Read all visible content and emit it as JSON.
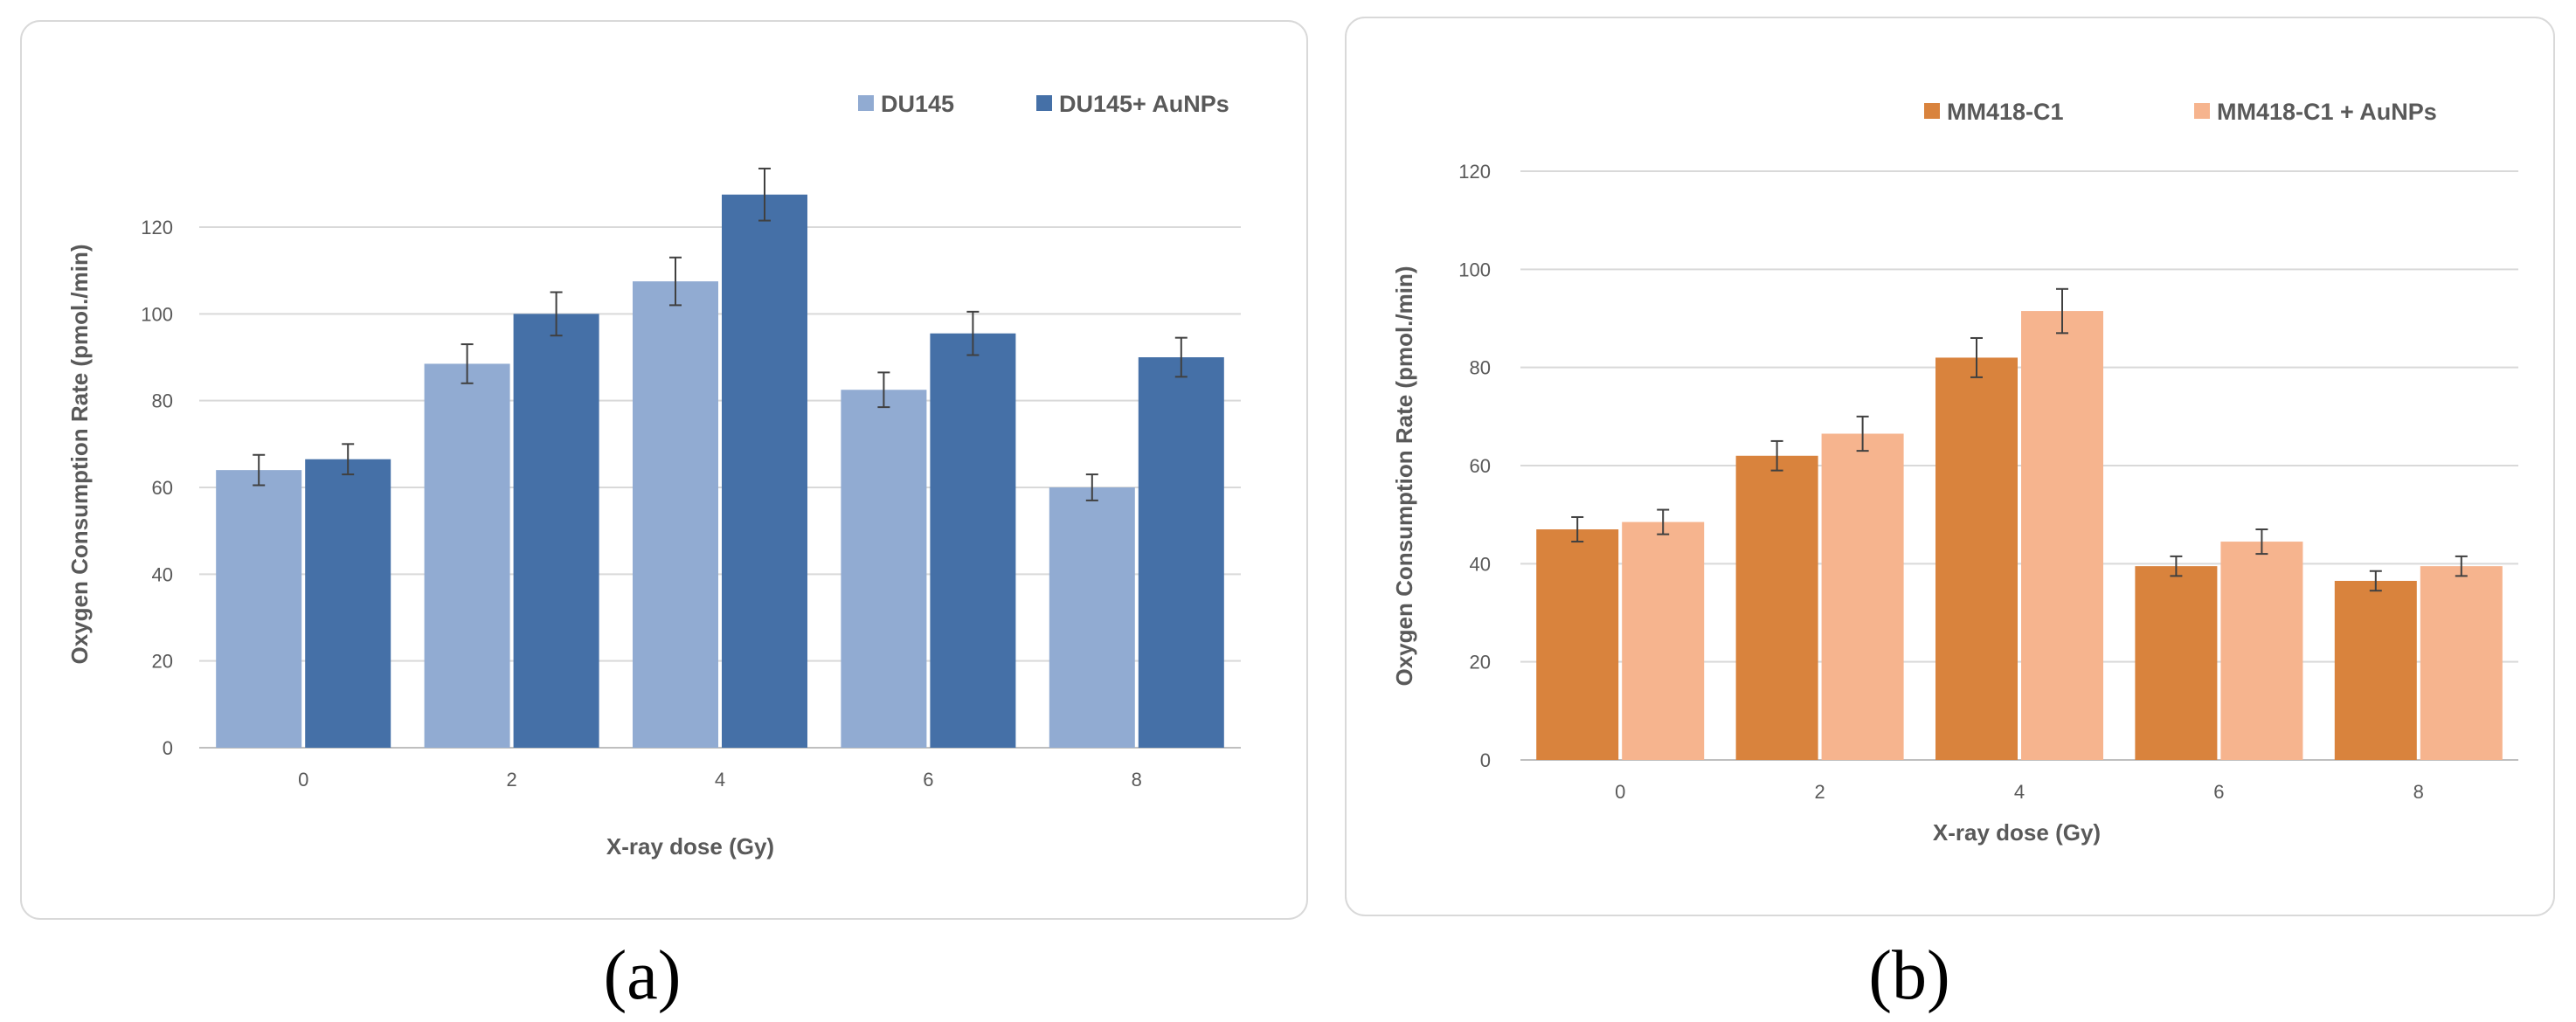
{
  "panels": [
    {
      "label": "(a)",
      "chart_data": {
        "type": "bar",
        "categories": [
          "0",
          "2",
          "4",
          "6",
          "8"
        ],
        "series": [
          {
            "name": "DU145",
            "color": "#91ABD2",
            "values": [
              64,
              88.5,
              107.5,
              82.5,
              60
            ],
            "errors": [
              3.5,
              4.5,
              5.5,
              4,
              3
            ]
          },
          {
            "name": "DU145+ AuNPs",
            "color": "#4570A7",
            "values": [
              66.5,
              100,
              127.5,
              95.5,
              90
            ],
            "errors": [
              3.5,
              5,
              6,
              5,
              4.5
            ]
          }
        ],
        "xlabel": "X-ray dose (Gy)",
        "ylabel": "Oxygen Consumption Rate (pmol./min)",
        "ylim": [
          0,
          120
        ],
        "yticks": [
          0,
          20,
          40,
          60,
          80,
          100,
          120
        ],
        "grid": true,
        "legend_position": "top-right"
      }
    },
    {
      "label": "(b)",
      "chart_data": {
        "type": "bar",
        "categories": [
          "0",
          "2",
          "4",
          "6",
          "8"
        ],
        "series": [
          {
            "name": "MM418-C1",
            "color": "#D9833D",
            "values": [
              47,
              62,
              82,
              39.5,
              36.5
            ],
            "errors": [
              2.5,
              3,
              4,
              2,
              2
            ]
          },
          {
            "name": "MM418-C1 + AuNPs",
            "color": "#F6B48E",
            "values": [
              48.5,
              66.5,
              91.5,
              44.5,
              39.5
            ],
            "errors": [
              2.5,
              3.5,
              4.5,
              2.5,
              2
            ]
          }
        ],
        "xlabel": "X-ray dose (Gy)",
        "ylabel": "Oxygen Consumption Rate (pmol./min)",
        "ylim": [
          0,
          120
        ],
        "yticks": [
          0,
          20,
          40,
          60,
          80,
          100,
          120
        ],
        "grid": true,
        "legend_position": "top-right"
      }
    }
  ]
}
